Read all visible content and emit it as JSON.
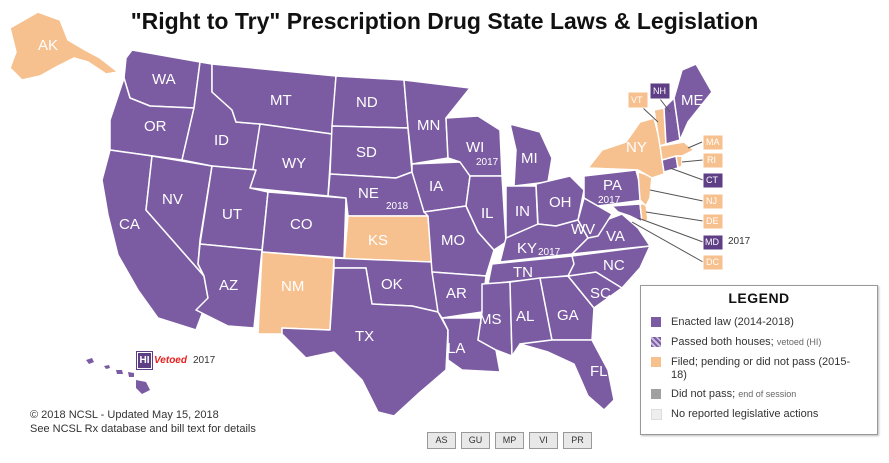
{
  "title": "\"Right to Try\" Prescription Drug State Laws & Legislation",
  "colors": {
    "enacted": "#7b5ba2",
    "filed": "#f7c18f",
    "did_not_pass": "#a0a0a0",
    "no_action": "#eeeeee",
    "box_enacted": "#5e3f85"
  },
  "states": {
    "WA": "WA",
    "OR": "OR",
    "CA": "CA",
    "NV": "NV",
    "ID": "ID",
    "MT": "MT",
    "WY": "WY",
    "UT": "UT",
    "AZ": "AZ",
    "CO": "CO",
    "NM": "NM",
    "ND": "ND",
    "SD": "SD",
    "NE": "NE",
    "KS": "KS",
    "OK": "OK",
    "TX": "TX",
    "MN": "MN",
    "IA": "IA",
    "MO": "MO",
    "AR": "AR",
    "LA": "LA",
    "WI": "WI",
    "IL": "IL",
    "MI": "MI",
    "IN": "IN",
    "OH": "OH",
    "KY": "KY",
    "TN": "TN",
    "MS": "MS",
    "AL": "AL",
    "GA": "GA",
    "FL": "FL",
    "SC": "SC",
    "NC": "NC",
    "VA": "VA",
    "WV": "WV",
    "PA": "PA",
    "NY": "NY",
    "ME": "ME",
    "AK": "AK"
  },
  "years": {
    "WI": "2017",
    "NE": "2018",
    "KY": "2017",
    "PA": "2017",
    "MD": "2017"
  },
  "ne_boxes": {
    "VT": "VT",
    "NH": "NH",
    "MA": "MA",
    "RI": "RI",
    "CT": "CT",
    "NJ": "NJ",
    "DE": "DE",
    "MD": "MD",
    "DC": "DC"
  },
  "hawaii": {
    "badge": "HI",
    "vetoed": "Vetoed",
    "year": "2017"
  },
  "legend": {
    "title": "LEGEND",
    "enacted": "Enacted law (2014-2018)",
    "passed_both": "Passed both houses;",
    "passed_both_sub": "vetoed (HI)",
    "filed": "Filed; pending or did not pass (2015-18)",
    "did_not_pass": "Did not pass;",
    "did_not_pass_sub": "end of session",
    "no_action": "No reported legislative actions"
  },
  "footer": {
    "line1": "© 2018 NCSL - Updated May 15, 2018",
    "line2": "See NCSL Rx database and bill text for details"
  },
  "territories": [
    "AS",
    "GU",
    "MP",
    "VI",
    "PR"
  ]
}
